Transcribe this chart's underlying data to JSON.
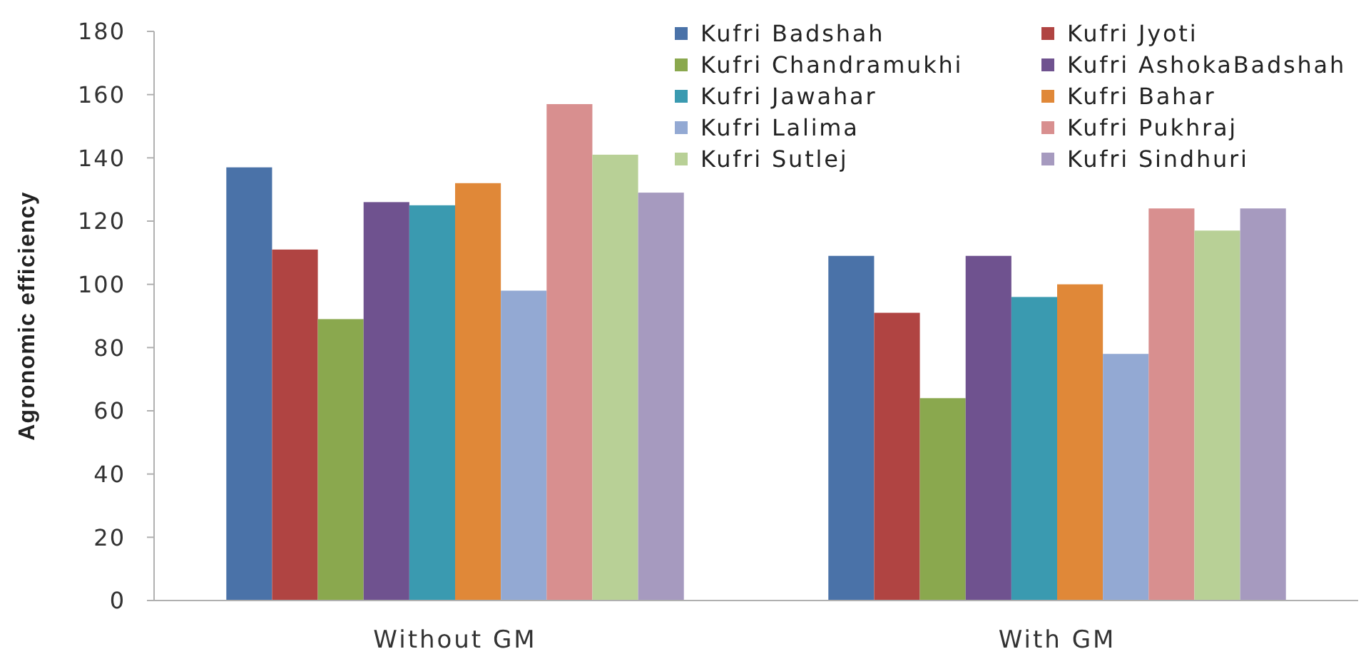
{
  "chart_data": {
    "type": "bar",
    "ylabel": "Agronomic efficiency",
    "categories": [
      "Without GM",
      "With GM"
    ],
    "series": [
      {
        "name": "Kufri Badshah",
        "color": "#4a72a8",
        "values": [
          137,
          109
        ]
      },
      {
        "name": "Kufri Jyoti",
        "color": "#b04442",
        "values": [
          111,
          91
        ]
      },
      {
        "name": "Kufri Chandramukhi",
        "color": "#8aa84e",
        "values": [
          89,
          64
        ]
      },
      {
        "name": "Kufri AshokaBadshah",
        "color": "#6f528f",
        "values": [
          126,
          109
        ]
      },
      {
        "name": "Kufri Jawahar",
        "color": "#3a9ab0",
        "values": [
          125,
          96
        ]
      },
      {
        "name": "Kufri Bahar",
        "color": "#e08838",
        "values": [
          132,
          100
        ]
      },
      {
        "name": "Kufri Lalima",
        "color": "#93a9d3",
        "values": [
          98,
          78
        ]
      },
      {
        "name": "Kufri Pukhraj",
        "color": "#d88f8f",
        "values": [
          157,
          124
        ]
      },
      {
        "name": "Kufri Sutlej",
        "color": "#b8d096",
        "values": [
          141,
          117
        ]
      },
      {
        "name": "Kufri Sindhuri",
        "color": "#a69abf",
        "values": [
          129,
          124
        ]
      }
    ],
    "ylim": [
      0,
      180
    ],
    "yticks": [
      0,
      20,
      40,
      60,
      80,
      100,
      120,
      140,
      160,
      180
    ],
    "grid": false,
    "legend": "top right"
  }
}
